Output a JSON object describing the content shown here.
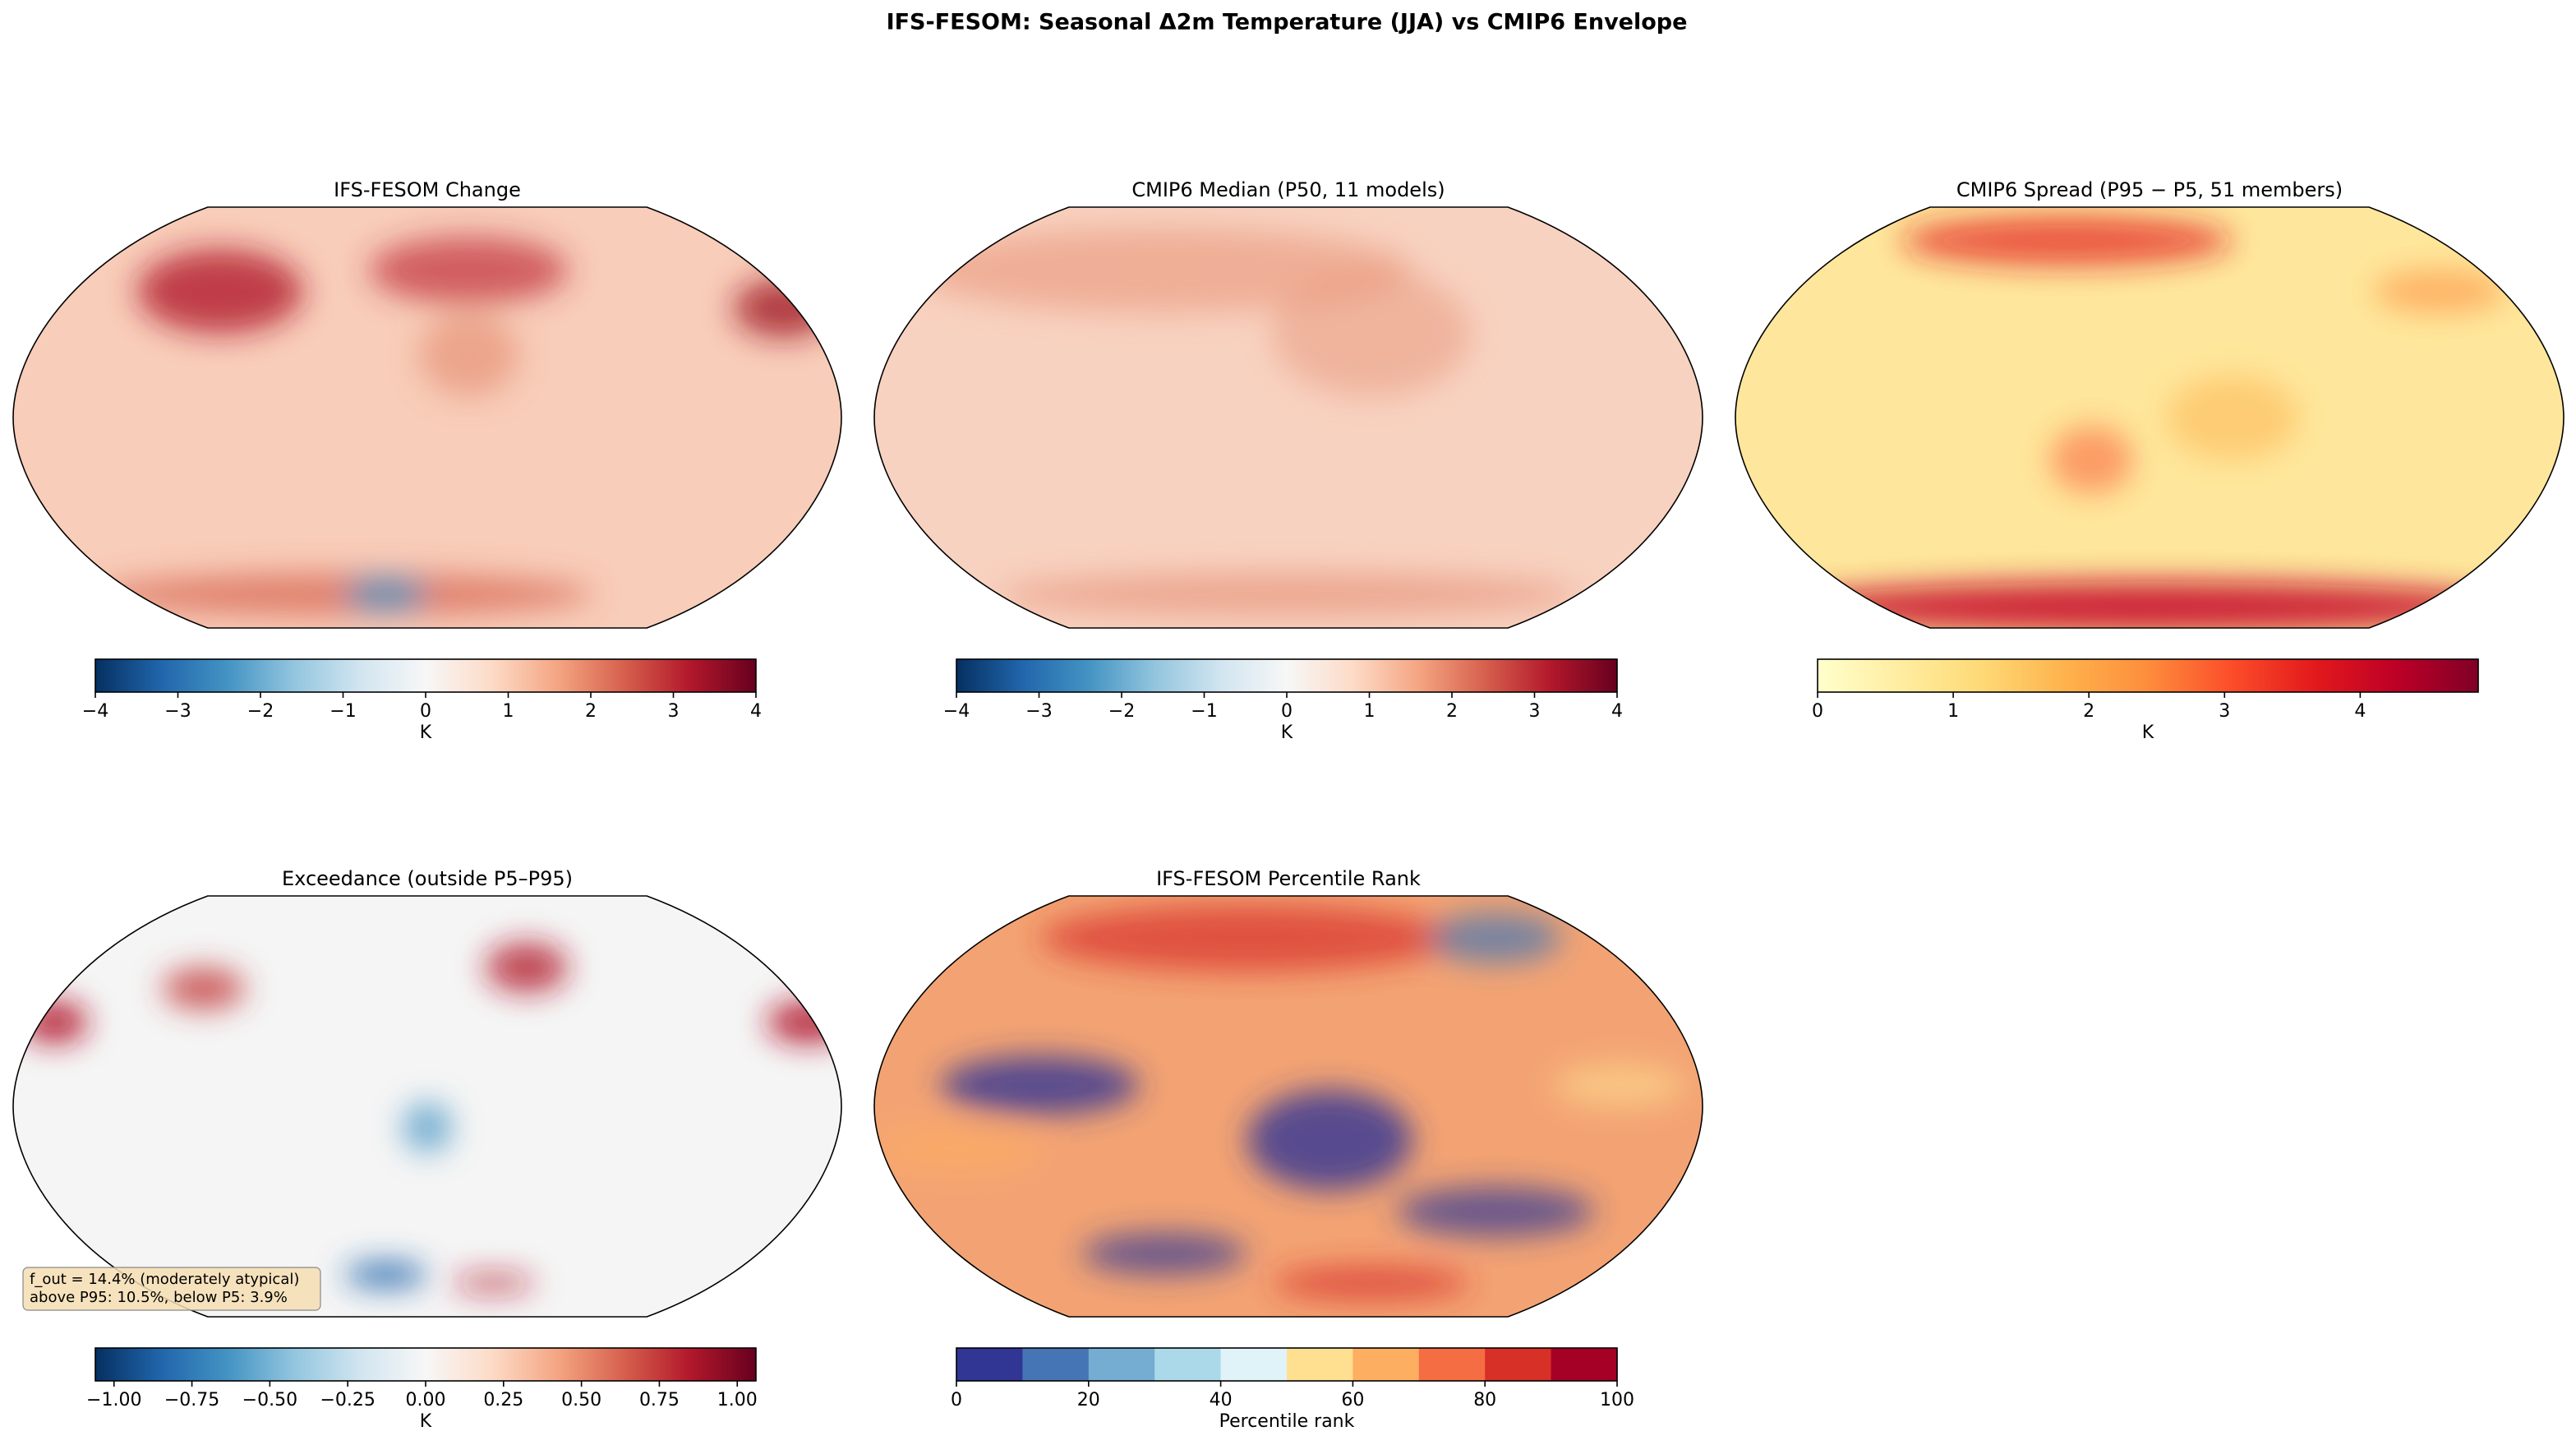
{
  "title": "IFS-FESOM: Seasonal Δ2m Temperature (JJA) vs CMIP6 Envelope",
  "annotation": [
    "f_out = 14.4% (moderately atypical)",
    "above P95: 10.5%, below P5: 3.9%"
  ],
  "chart_data": [
    {
      "type": "map",
      "title": "IFS-FESOM Change",
      "colorbar": {
        "label": "K",
        "xlim": [
          -4,
          4
        ],
        "xticks": [
          {
            "value": -4,
            "label": "−4"
          },
          {
            "value": -3,
            "label": "−3"
          },
          {
            "value": -2,
            "label": "−2"
          },
          {
            "value": -1,
            "label": "−1"
          },
          0,
          1,
          2,
          3,
          4
        ],
        "colors": [
          "#053061",
          "#2166ac",
          "#4393c3",
          "#92c5de",
          "#d1e5f0",
          "#f7f7f7",
          "#fddbc7",
          "#f4a582",
          "#d6604d",
          "#b2182b",
          "#67001f"
        ]
      }
    },
    {
      "type": "map",
      "title": "CMIP6 Median (P50, 11 models)",
      "colorbar": {
        "label": "K",
        "xlim": [
          -4,
          4
        ],
        "xticks": [
          {
            "value": -4,
            "label": "−4"
          },
          {
            "value": -3,
            "label": "−3"
          },
          {
            "value": -2,
            "label": "−2"
          },
          {
            "value": -1,
            "label": "−1"
          },
          0,
          1,
          2,
          3,
          4
        ],
        "colors": [
          "#053061",
          "#2166ac",
          "#4393c3",
          "#92c5de",
          "#d1e5f0",
          "#f7f7f7",
          "#fddbc7",
          "#f4a582",
          "#d6604d",
          "#b2182b",
          "#67001f"
        ]
      }
    },
    {
      "type": "map",
      "title": "CMIP6 Spread (P95 − P5, 51 members)",
      "colorbar": {
        "label": "K",
        "xlim": [
          0,
          4.87
        ],
        "xticks": [
          0,
          1,
          2,
          3,
          4
        ],
        "colors": [
          "#ffffcc",
          "#ffeda0",
          "#fed976",
          "#feb24c",
          "#fd8d3c",
          "#fc4e2a",
          "#e31a1c",
          "#bd0026",
          "#800026"
        ]
      }
    },
    {
      "type": "map",
      "title": "Exceedance (outside P5–P95)",
      "colorbar": {
        "label": "K",
        "xlim": [
          -1.06,
          1.06
        ],
        "xticks": [
          {
            "value": -1,
            "label": "−1.00"
          },
          {
            "value": -0.75,
            "label": "−0.75"
          },
          {
            "value": -0.5,
            "label": "−0.50"
          },
          {
            "value": -0.25,
            "label": "−0.25"
          },
          {
            "value": 0,
            "label": "0.00"
          },
          0.25,
          {
            "value": 0.5,
            "label": "0.50"
          },
          0.75,
          {
            "value": 1,
            "label": "1.00"
          }
        ],
        "colors": [
          "#053061",
          "#2166ac",
          "#4393c3",
          "#92c5de",
          "#d1e5f0",
          "#f7f7f7",
          "#fddbc7",
          "#f4a582",
          "#d6604d",
          "#b2182b",
          "#67001f"
        ]
      }
    },
    {
      "type": "map",
      "title": "IFS-FESOM Percentile Rank",
      "colorbar": {
        "label": "Percentile rank",
        "xlim": [
          0,
          100
        ],
        "xticks": [
          0,
          20,
          40,
          60,
          80,
          100
        ],
        "discrete": true,
        "colors": [
          "#313695",
          "#4575b4",
          "#74add1",
          "#abd9e9",
          "#e0f3f8",
          "#fee090",
          "#fdae61",
          "#f46d43",
          "#d73027",
          "#a50026"
        ]
      }
    }
  ]
}
